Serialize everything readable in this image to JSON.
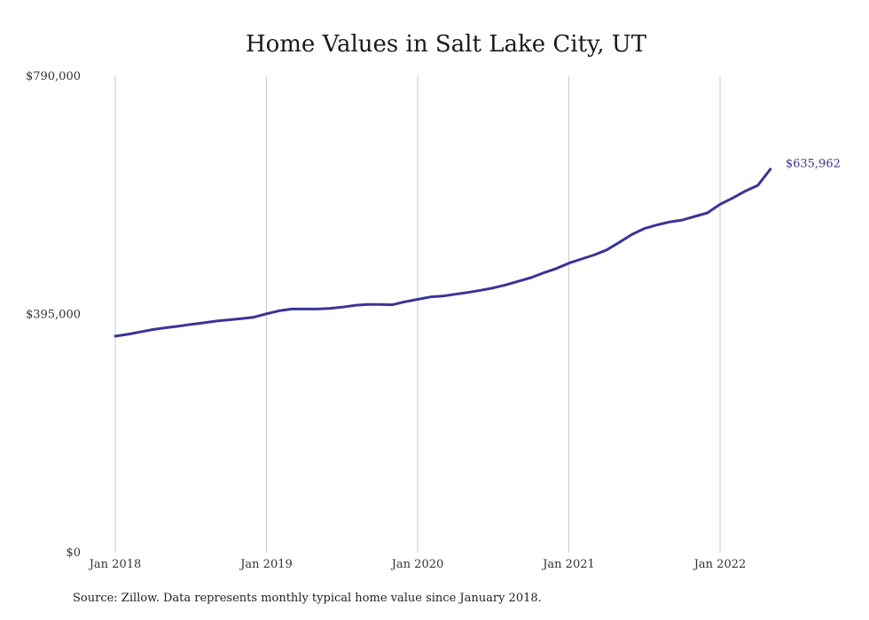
{
  "chart_data": {
    "type": "line",
    "title": "Home Values in Salt Lake City, UT",
    "xlabel": "",
    "ylabel": "",
    "ylim": [
      0,
      790000
    ],
    "y_ticks": [
      "$0",
      "$395,000",
      "$790,000"
    ],
    "x_ticks": [
      "Jan 2018",
      "Jan 2019",
      "Jan 2020",
      "Jan 2021",
      "Jan 2022"
    ],
    "grid": "vertical",
    "line_color": "#3a3496",
    "end_label": "$635,962",
    "series": [
      {
        "x": [
          "2018-01",
          "2018-02",
          "2018-03",
          "2018-04",
          "2018-05",
          "2018-06",
          "2018-07",
          "2018-08",
          "2018-09",
          "2018-10",
          "2018-11",
          "2018-12",
          "2019-01",
          "2019-02",
          "2019-03",
          "2019-04",
          "2019-05",
          "2019-06",
          "2019-07",
          "2019-08",
          "2019-09",
          "2019-10",
          "2019-11",
          "2019-12",
          "2020-01",
          "2020-02",
          "2020-03",
          "2020-04",
          "2020-05",
          "2020-06",
          "2020-07",
          "2020-08",
          "2020-09",
          "2020-10",
          "2020-11",
          "2020-12",
          "2021-01",
          "2021-02",
          "2021-03",
          "2021-04",
          "2021-05",
          "2021-06",
          "2021-07",
          "2021-08",
          "2021-09",
          "2021-10",
          "2021-11",
          "2021-12",
          "2022-01",
          "2022-02",
          "2022-03",
          "2022-04",
          "2022-05"
        ],
        "values": [
          359000,
          362000,
          366000,
          370000,
          373000,
          375500,
          378500,
          381000,
          384000,
          386000,
          388000,
          390500,
          396000,
          401000,
          404000,
          404000,
          404000,
          405000,
          407000,
          410000,
          411500,
          411500,
          411000,
          416000,
          420000,
          424000,
          425500,
          428500,
          431500,
          435000,
          439000,
          444000,
          450000,
          456000,
          464000,
          471000,
          480000,
          487000,
          493500,
          502000,
          514500,
          527500,
          537500,
          543500,
          548500,
          551500,
          557500,
          563500,
          577500,
          588000,
          599500,
          609000,
          635962
        ]
      }
    ],
    "source": "Source: Zillow. Data represents monthly typical home value since January 2018."
  }
}
